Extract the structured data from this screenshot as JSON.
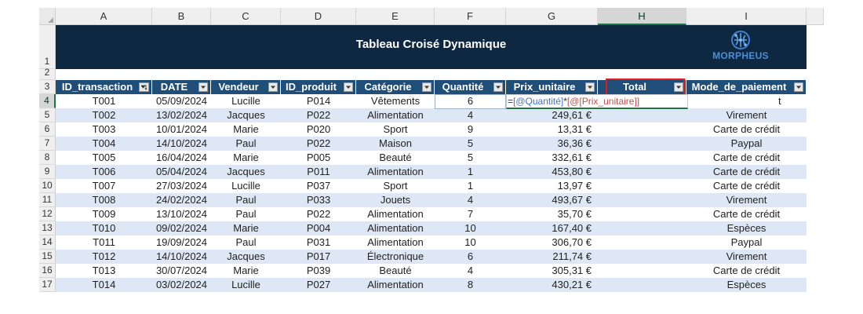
{
  "columns": [
    "A",
    "B",
    "C",
    "D",
    "E",
    "F",
    "G",
    "H",
    "I"
  ],
  "selected_column": "H",
  "rows": [
    "1",
    "2",
    "3",
    "4",
    "5",
    "6",
    "7",
    "8",
    "9",
    "10",
    "11",
    "12",
    "13",
    "14",
    "15",
    "16",
    "17"
  ],
  "active_row": "4",
  "banner": {
    "title": "Tableau Croisé Dynamique",
    "logo_text": "MORPHEUS"
  },
  "headers": [
    "ID_transaction",
    "DATE",
    "Vendeur",
    "ID_produit",
    "Catégorie",
    "Quantité",
    "Prix_unitaire",
    "Total",
    "Mode_de_paiement"
  ],
  "formula": {
    "eq": "=",
    "ref1": "[@Quantité]",
    "op": "*",
    "ref2": "[@[Prix_unitaire]]",
    "tail": "t"
  },
  "data": [
    [
      "T001",
      "05/09/2024",
      "Lucille",
      "P014",
      "Vêtements",
      "6",
      "",
      "",
      ""
    ],
    [
      "T002",
      "13/02/2024",
      "Jacques",
      "P022",
      "Alimentation",
      "4",
      "249,61 €",
      "",
      "Virement"
    ],
    [
      "T003",
      "10/01/2024",
      "Marie",
      "P020",
      "Sport",
      "9",
      "13,31 €",
      "",
      "Carte de crédit"
    ],
    [
      "T004",
      "14/10/2024",
      "Paul",
      "P022",
      "Maison",
      "5",
      "36,36 €",
      "",
      "Paypal"
    ],
    [
      "T005",
      "16/04/2024",
      "Marie",
      "P005",
      "Beauté",
      "5",
      "332,61 €",
      "",
      "Carte de crédit"
    ],
    [
      "T006",
      "05/04/2024",
      "Jacques",
      "P011",
      "Alimentation",
      "1",
      "453,80 €",
      "",
      "Carte de crédit"
    ],
    [
      "T007",
      "27/03/2024",
      "Lucille",
      "P037",
      "Sport",
      "1",
      "13,97 €",
      "",
      "Carte de crédit"
    ],
    [
      "T008",
      "24/02/2024",
      "Paul",
      "P033",
      "Jouets",
      "4",
      "493,67 €",
      "",
      "Virement"
    ],
    [
      "T009",
      "13/10/2024",
      "Paul",
      "P022",
      "Alimentation",
      "7",
      "35,70 €",
      "",
      "Carte de crédit"
    ],
    [
      "T010",
      "09/02/2024",
      "Marie",
      "P004",
      "Alimentation",
      "10",
      "167,40 €",
      "",
      "Espèces"
    ],
    [
      "T011",
      "19/09/2024",
      "Paul",
      "P031",
      "Alimentation",
      "10",
      "306,70 €",
      "",
      "Paypal"
    ],
    [
      "T012",
      "14/10/2024",
      "Jacques",
      "P017",
      "Électronique",
      "6",
      "211,74 €",
      "",
      "Virement"
    ],
    [
      "T013",
      "30/07/2024",
      "Marie",
      "P039",
      "Beauté",
      "4",
      "305,31 €",
      "",
      "Carte de crédit"
    ],
    [
      "T014",
      "03/02/2024",
      "Lucille",
      "P027",
      "Alimentation",
      "8",
      "430,21 €",
      "",
      "Espèces"
    ]
  ],
  "colors": {
    "header_bg": "#1f4e79",
    "banner_bg": "#0e2841",
    "band": "#dde7f5",
    "highlight": "#e41b1b",
    "select": "#217346"
  }
}
